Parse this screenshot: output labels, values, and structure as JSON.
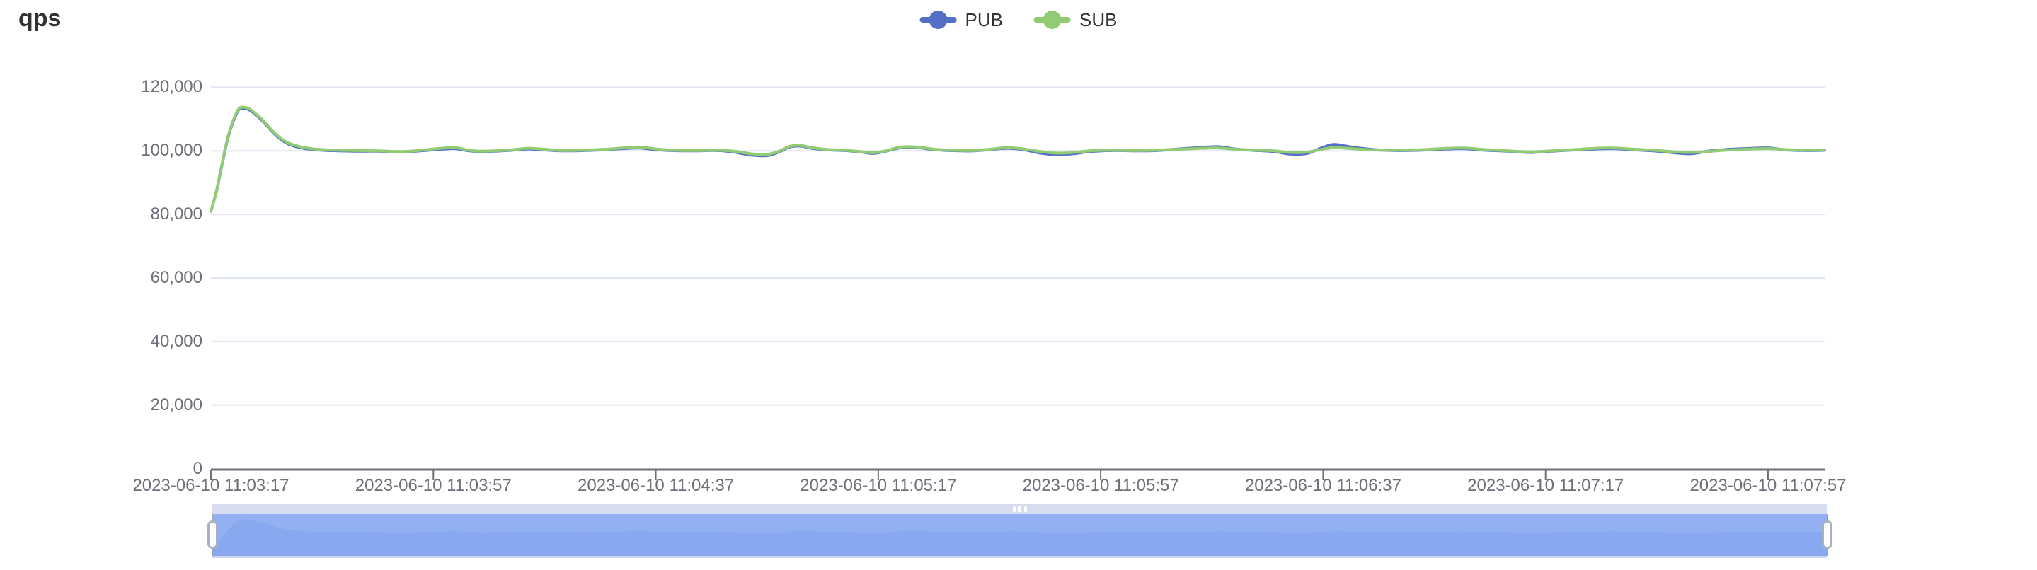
{
  "title": "qps",
  "legend": {
    "items": [
      {
        "label": "PUB",
        "color": "#5470C6"
      },
      {
        "label": "SUB",
        "color": "#91CC75"
      }
    ]
  },
  "colors": {
    "pub_series": "#5470C6",
    "sub_series": "#91CC75",
    "grid_line": "#E0E6F1",
    "axis_line": "#6E7079",
    "axis_label": "#6E7079",
    "title_text": "#333333",
    "slider_move_bar": "#D7DDEF",
    "slider_selection": "#93B1F2",
    "slider_shadow": "#88A9F0",
    "slider_handle_border": "#A9B0C0"
  },
  "chart_data": {
    "type": "line",
    "smooth": true,
    "grid": true,
    "legend_position": "top-center",
    "x_axis": {
      "type": "time",
      "tick_labels": [
        "2023-06-10 11:03:17",
        "2023-06-10 11:03:57",
        "2023-06-10 11:04:37",
        "2023-06-10 11:05:17",
        "2023-06-10 11:05:57",
        "2023-06-10 11:06:37",
        "2023-06-10 11:07:17",
        "2023-06-10 11:07:57"
      ],
      "tick_offsets_seconds": [
        0,
        40,
        80,
        120,
        160,
        200,
        240,
        280
      ],
      "domain_seconds": [
        0,
        290
      ]
    },
    "y_axis": {
      "ylim": [
        0,
        120000
      ],
      "tick_values": [
        0,
        20000,
        40000,
        60000,
        80000,
        100000,
        120000
      ],
      "tick_labels": [
        "0",
        "20,000",
        "40,000",
        "60,000",
        "80,000",
        "100,000",
        "120,000"
      ]
    },
    "series": [
      {
        "name": "PUB",
        "color": "#5470C6",
        "points": [
          [
            0,
            81000
          ],
          [
            1,
            87300
          ],
          [
            2,
            95700
          ],
          [
            3,
            103700
          ],
          [
            4,
            109200
          ],
          [
            5,
            112900
          ],
          [
            6,
            113300
          ],
          [
            7,
            112800
          ],
          [
            8,
            111400
          ],
          [
            9,
            109900
          ],
          [
            10,
            108000
          ],
          [
            11,
            106100
          ],
          [
            12,
            104400
          ],
          [
            13,
            103100
          ],
          [
            14,
            102100
          ],
          [
            16,
            101000
          ],
          [
            18,
            100500
          ],
          [
            20,
            100200
          ],
          [
            23,
            100000
          ],
          [
            26,
            99900
          ],
          [
            30,
            99900
          ],
          [
            33,
            99700
          ],
          [
            36,
            99800
          ],
          [
            39,
            100200
          ],
          [
            42,
            100600
          ],
          [
            44,
            100700
          ],
          [
            46,
            100100
          ],
          [
            48,
            99800
          ],
          [
            51,
            99900
          ],
          [
            54,
            100200
          ],
          [
            57,
            100600
          ],
          [
            60,
            100300
          ],
          [
            63,
            100000
          ],
          [
            67,
            100100
          ],
          [
            71,
            100400
          ],
          [
            74,
            100700
          ],
          [
            77,
            100900
          ],
          [
            80,
            100400
          ],
          [
            83,
            100100
          ],
          [
            87,
            100000
          ],
          [
            91,
            100100
          ],
          [
            94,
            99600
          ],
          [
            97,
            98700
          ],
          [
            100,
            98500
          ],
          [
            102,
            99600
          ],
          [
            104,
            101200
          ],
          [
            106,
            101500
          ],
          [
            108,
            100800
          ],
          [
            111,
            100300
          ],
          [
            114,
            100100
          ],
          [
            117,
            99600
          ],
          [
            119,
            99200
          ],
          [
            121,
            99800
          ],
          [
            124,
            101000
          ],
          [
            127,
            101000
          ],
          [
            130,
            100400
          ],
          [
            133,
            100100
          ],
          [
            137,
            100000
          ],
          [
            140,
            100400
          ],
          [
            143,
            100800
          ],
          [
            146,
            100400
          ],
          [
            149,
            99300
          ],
          [
            152,
            98800
          ],
          [
            155,
            99100
          ],
          [
            158,
            99800
          ],
          [
            162,
            100100
          ],
          [
            166,
            100000
          ],
          [
            170,
            100100
          ],
          [
            174,
            100600
          ],
          [
            178,
            101100
          ],
          [
            181,
            101300
          ],
          [
            184,
            100600
          ],
          [
            188,
            100100
          ],
          [
            191,
            99800
          ],
          [
            194,
            99000
          ],
          [
            197,
            99200
          ],
          [
            200,
            101200
          ],
          [
            202,
            102000
          ],
          [
            205,
            101200
          ],
          [
            209,
            100400
          ],
          [
            213,
            100100
          ],
          [
            217,
            100200
          ],
          [
            221,
            100500
          ],
          [
            225,
            100700
          ],
          [
            229,
            100200
          ],
          [
            233,
            99900
          ],
          [
            237,
            99500
          ],
          [
            241,
            99900
          ],
          [
            245,
            100300
          ],
          [
            249,
            100600
          ],
          [
            252,
            100700
          ],
          [
            256,
            100300
          ],
          [
            260,
            99900
          ],
          [
            263,
            99400
          ],
          [
            266,
            99100
          ],
          [
            269,
            99900
          ],
          [
            273,
            100500
          ],
          [
            277,
            100800
          ],
          [
            280,
            100900
          ],
          [
            283,
            100300
          ],
          [
            287,
            100100
          ],
          [
            290,
            100200
          ]
        ]
      },
      {
        "name": "SUB",
        "color": "#91CC75",
        "points": [
          [
            0,
            81000
          ],
          [
            1,
            87500
          ],
          [
            2,
            96000
          ],
          [
            3,
            104000
          ],
          [
            4,
            109500
          ],
          [
            5,
            113200
          ],
          [
            6,
            113700
          ],
          [
            7,
            113100
          ],
          [
            8,
            111700
          ],
          [
            9,
            110200
          ],
          [
            10,
            108300
          ],
          [
            11,
            106400
          ],
          [
            12,
            104700
          ],
          [
            13,
            103400
          ],
          [
            14,
            102400
          ],
          [
            16,
            101300
          ],
          [
            18,
            100700
          ],
          [
            20,
            100400
          ],
          [
            23,
            100200
          ],
          [
            26,
            100100
          ],
          [
            30,
            100000
          ],
          [
            33,
            99800
          ],
          [
            36,
            99900
          ],
          [
            39,
            100400
          ],
          [
            42,
            100900
          ],
          [
            44,
            101000
          ],
          [
            46,
            100300
          ],
          [
            48,
            99900
          ],
          [
            51,
            100000
          ],
          [
            54,
            100300
          ],
          [
            57,
            100800
          ],
          [
            60,
            100500
          ],
          [
            63,
            100100
          ],
          [
            67,
            100200
          ],
          [
            71,
            100500
          ],
          [
            74,
            100900
          ],
          [
            77,
            101200
          ],
          [
            80,
            100600
          ],
          [
            83,
            100200
          ],
          [
            87,
            100100
          ],
          [
            91,
            100200
          ],
          [
            94,
            99900
          ],
          [
            97,
            99100
          ],
          [
            100,
            98900
          ],
          [
            102,
            99800
          ],
          [
            104,
            101400
          ],
          [
            106,
            101700
          ],
          [
            108,
            101000
          ],
          [
            111,
            100400
          ],
          [
            114,
            100200
          ],
          [
            117,
            99700
          ],
          [
            119,
            99400
          ],
          [
            121,
            99900
          ],
          [
            124,
            101200
          ],
          [
            127,
            101200
          ],
          [
            130,
            100500
          ],
          [
            133,
            100200
          ],
          [
            137,
            100100
          ],
          [
            140,
            100500
          ],
          [
            143,
            101000
          ],
          [
            146,
            100600
          ],
          [
            149,
            99800
          ],
          [
            152,
            99300
          ],
          [
            155,
            99500
          ],
          [
            158,
            100000
          ],
          [
            162,
            100200
          ],
          [
            166,
            100100
          ],
          [
            170,
            100200
          ],
          [
            174,
            100500
          ],
          [
            178,
            100800
          ],
          [
            181,
            100900
          ],
          [
            184,
            100500
          ],
          [
            188,
            100200
          ],
          [
            191,
            100000
          ],
          [
            194,
            99500
          ],
          [
            197,
            99600
          ],
          [
            200,
            100600
          ],
          [
            202,
            101000
          ],
          [
            205,
            100700
          ],
          [
            209,
            100300
          ],
          [
            213,
            100200
          ],
          [
            217,
            100300
          ],
          [
            221,
            100700
          ],
          [
            225,
            100900
          ],
          [
            229,
            100400
          ],
          [
            233,
            100000
          ],
          [
            237,
            99700
          ],
          [
            241,
            100000
          ],
          [
            245,
            100400
          ],
          [
            249,
            100800
          ],
          [
            252,
            100900
          ],
          [
            256,
            100500
          ],
          [
            260,
            100100
          ],
          [
            263,
            99700
          ],
          [
            266,
            99500
          ],
          [
            269,
            99800
          ],
          [
            273,
            100300
          ],
          [
            277,
            100600
          ],
          [
            280,
            100700
          ],
          [
            283,
            100400
          ],
          [
            287,
            100200
          ],
          [
            290,
            100300
          ]
        ]
      }
    ]
  },
  "datazoom": {
    "description": "range slider spanning full data window",
    "selected_range_percent": [
      0,
      100
    ]
  }
}
